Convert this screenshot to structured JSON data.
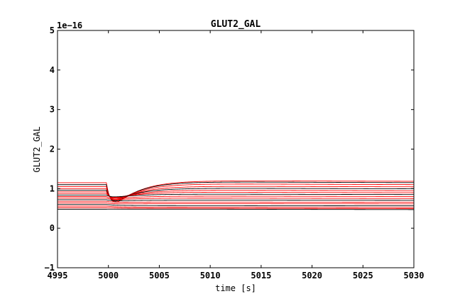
{
  "chart_data": {
    "type": "line",
    "title": "GLUT2_GAL",
    "xlabel": "time [s]",
    "ylabel": "GLUT2_GAL",
    "y_offset_label": "1e−16",
    "xlim": [
      4995,
      5030
    ],
    "ylim": [
      -1,
      5
    ],
    "xticks": [
      4995,
      5000,
      5005,
      5010,
      5015,
      5020,
      5025,
      5030
    ],
    "yticks": [
      -1,
      0,
      1,
      2,
      3,
      4,
      5
    ],
    "ytick_labels": [
      "−1",
      "0",
      "1",
      "2",
      "3",
      "4",
      "5"
    ],
    "grid": false,
    "line_color": "#ff0000",
    "dark_line_color": "#000000",
    "step_time": 4999.8,
    "series": [
      {
        "initial": 1.15,
        "dip": 0.68,
        "peak": 1.2,
        "final": 1.17
      },
      {
        "initial": 1.1,
        "dip": 0.7,
        "peak": 1.17,
        "final": 1.13
      },
      {
        "initial": 1.05,
        "dip": 0.72,
        "peak": 1.12,
        "final": 1.08
      },
      {
        "initial": 1.0,
        "dip": 0.74,
        "peak": 1.06,
        "final": 1.03
      },
      {
        "initial": 0.96,
        "dip": 0.76,
        "peak": 1.01,
        "final": 0.98
      },
      {
        "initial": 0.92,
        "dip": 0.77,
        "peak": 0.96,
        "final": 0.93
      },
      {
        "initial": 0.88,
        "dip": 0.78,
        "peak": 0.91,
        "final": 0.88
      },
      {
        "initial": 0.84,
        "dip": 0.79,
        "peak": 0.86,
        "final": 0.84
      },
      {
        "initial": 0.8,
        "dip": 0.75,
        "peak": 0.81,
        "final": 0.79
      },
      {
        "initial": 0.76,
        "dip": 0.72,
        "peak": 0.76,
        "final": 0.74
      },
      {
        "initial": 0.72,
        "dip": 0.69,
        "peak": 0.71,
        "final": 0.7
      },
      {
        "initial": 0.68,
        "dip": 0.65,
        "peak": 0.66,
        "final": 0.65
      },
      {
        "initial": 0.64,
        "dip": 0.61,
        "peak": 0.62,
        "final": 0.61
      },
      {
        "initial": 0.6,
        "dip": 0.57,
        "peak": 0.57,
        "final": 0.56
      },
      {
        "initial": 0.56,
        "dip": 0.53,
        "peak": 0.53,
        "final": 0.52
      },
      {
        "initial": 0.52,
        "dip": 0.5,
        "peak": 0.5,
        "final": 0.49
      },
      {
        "initial": 0.48,
        "dip": 0.47,
        "peak": 0.48,
        "final": 0.46
      }
    ]
  }
}
